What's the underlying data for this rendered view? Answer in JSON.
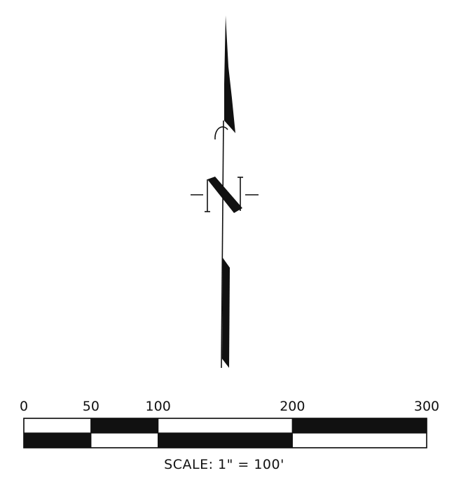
{
  "north_arrow": {
    "letter": "N"
  },
  "scale_bar": {
    "tick_labels": [
      "0",
      "50",
      "100",
      "200",
      "300"
    ],
    "tick_values": [
      0,
      50,
      100,
      200,
      300
    ],
    "segments": [
      {
        "from": 0,
        "to": 50,
        "top": "white",
        "bottom": "black"
      },
      {
        "from": 50,
        "to": 100,
        "top": "black",
        "bottom": "white"
      },
      {
        "from": 100,
        "to": 200,
        "top": "white",
        "bottom": "black"
      },
      {
        "from": 200,
        "to": 300,
        "top": "black",
        "bottom": "white"
      }
    ],
    "caption": "SCALE:  1\"  =  100'"
  },
  "colors": {
    "ink": "#111111",
    "paper": "#ffffff"
  }
}
